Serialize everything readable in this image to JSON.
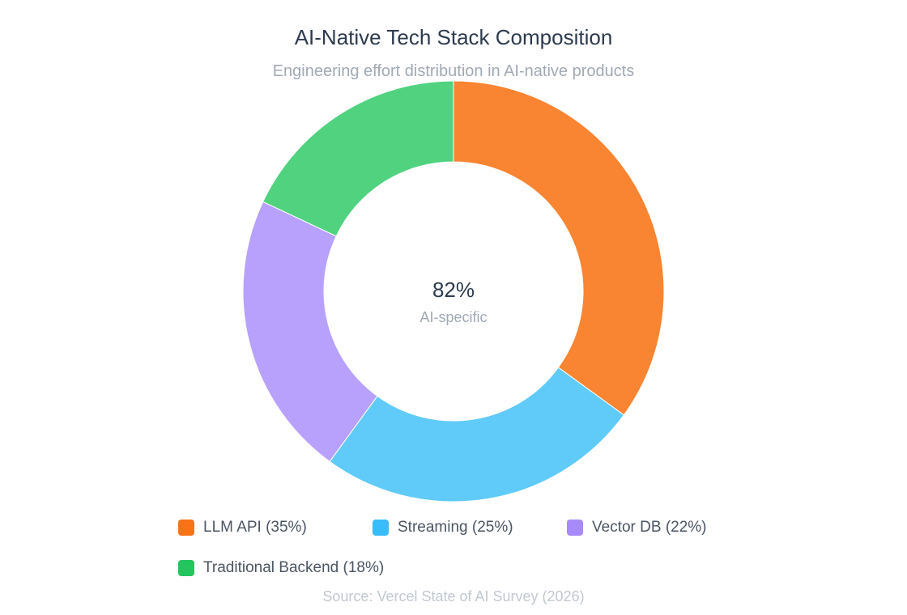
{
  "chart_data": {
    "type": "pie",
    "variant": "donut",
    "title": "AI-Native Tech Stack Composition",
    "subtitle": "Engineering effort distribution in AI-native products",
    "center_value": "82%",
    "center_label": "AI-specific",
    "source": "Source: Vercel State of AI Survey (2026)",
    "legend_position": "bottom",
    "slices": [
      {
        "name": "LLM API",
        "value": 35,
        "legend_label": "LLM API (35%)",
        "color": "#f98431",
        "swatch_color": "#f97316"
      },
      {
        "name": "Streaming",
        "value": 25,
        "legend_label": "Streaming (25%)",
        "color": "#60cbf9",
        "swatch_color": "#38bdf8"
      },
      {
        "name": "Vector DB",
        "value": 22,
        "legend_label": "Vector DB (22%)",
        "color": "#b8a1fc",
        "swatch_color": "#a78bfa"
      },
      {
        "name": "Traditional Backend",
        "value": 18,
        "legend_label": "Traditional Backend (18%)",
        "color": "#50d27f",
        "swatch_color": "#22c55e"
      }
    ]
  }
}
